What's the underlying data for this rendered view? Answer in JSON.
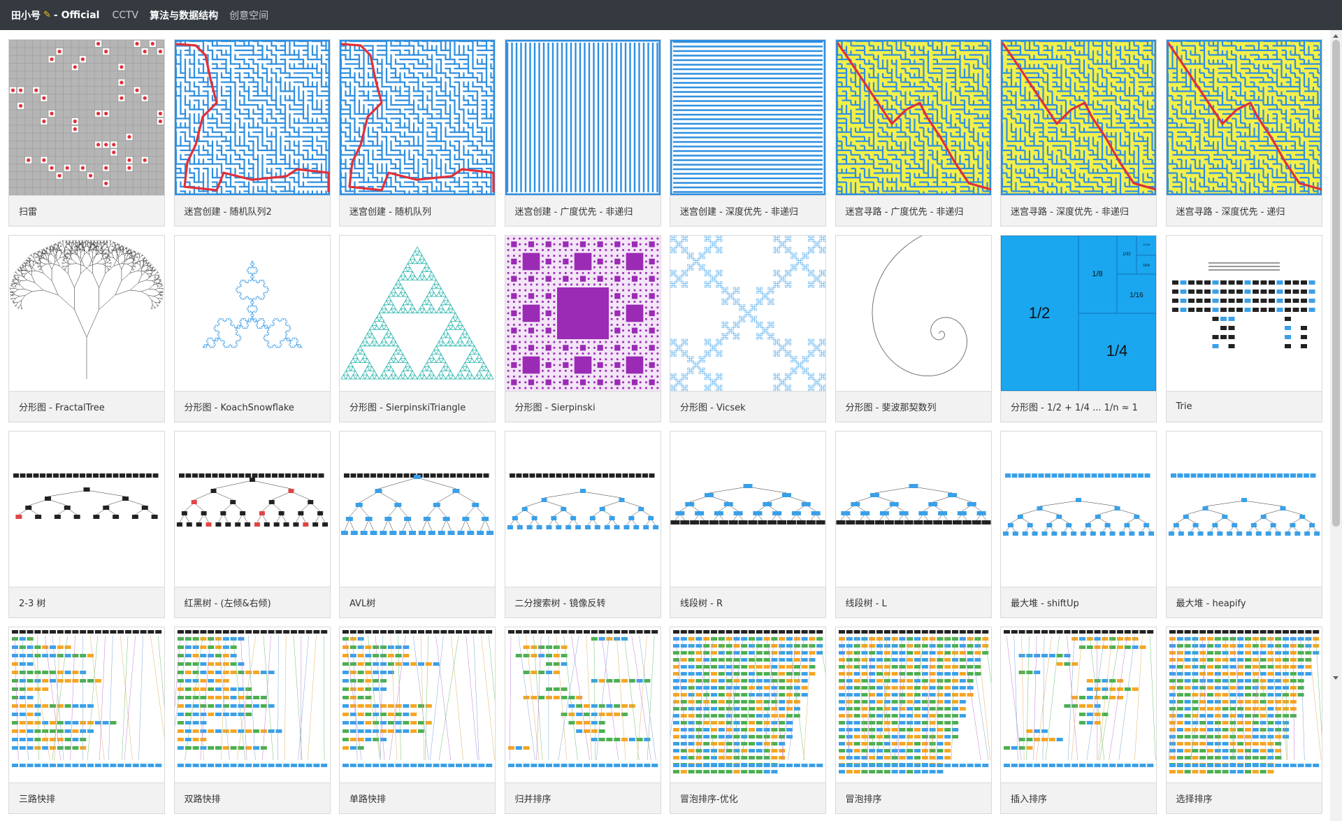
{
  "nav": {
    "brand": "田小号",
    "brand_suffix": "- Official",
    "links": [
      "CCTV",
      "算法与数据结构",
      "创意空间"
    ],
    "active": 1
  },
  "cards": [
    {
      "label": "扫雷",
      "kind": "minesweeper"
    },
    {
      "label": "迷宫创建 - 随机队列2",
      "kind": "maze-path"
    },
    {
      "label": "迷宫创建 - 随机队列",
      "kind": "maze-path"
    },
    {
      "label": "迷宫创建 - 广度优先 - 非递归",
      "kind": "maze-vertical"
    },
    {
      "label": "迷宫创建 - 深度优先 - 非递归",
      "kind": "maze-horizontal"
    },
    {
      "label": "迷宫寻路 - 广度优先 - 非递归",
      "kind": "maze-solve"
    },
    {
      "label": "迷宫寻路 - 深度优先 - 非递归",
      "kind": "maze-solve"
    },
    {
      "label": "迷宫寻路 - 深度优先 - 递归",
      "kind": "maze-solve"
    },
    {
      "label": "分形图 - FractalTree",
      "kind": "fractal-tree"
    },
    {
      "label": "分形图 - KoachSnowflake",
      "kind": "koch"
    },
    {
      "label": "分形图 - SierpinskiTriangle",
      "kind": "sierpinski-triangle"
    },
    {
      "label": "分形图 - Sierpinski",
      "kind": "sierpinski-carpet"
    },
    {
      "label": "分形图 - Vicsek",
      "kind": "vicsek"
    },
    {
      "label": "分形图 - 斐波那契数列",
      "kind": "spiral"
    },
    {
      "label": "分形图 - 1/2 + 1/4 ... 1/n ≈ 1",
      "kind": "halves",
      "fractions": [
        "1/2",
        "1/4",
        "1/8",
        "1/16",
        "1/32",
        "1/64",
        "1/128"
      ]
    },
    {
      "label": "Trie",
      "kind": "trie"
    },
    {
      "label": "2-3 树",
      "kind": "tree-small"
    },
    {
      "label": "红黑树 - (左倾&右倾)",
      "kind": "tree-redblack"
    },
    {
      "label": "AVL树",
      "kind": "tree-avl"
    },
    {
      "label": "二分搜索树 - 镜像反转",
      "kind": "tree-blue"
    },
    {
      "label": "线段树 - R",
      "kind": "tree-segment"
    },
    {
      "label": "线段树 - L",
      "kind": "tree-segment"
    },
    {
      "label": "最大堆 - shiftUp",
      "kind": "tree-heap"
    },
    {
      "label": "最大堆 - heapify",
      "kind": "tree-heap"
    },
    {
      "label": "三路快排",
      "kind": "sort"
    },
    {
      "label": "双路快排",
      "kind": "sort"
    },
    {
      "label": "单路快排",
      "kind": "sort"
    },
    {
      "label": "归并排序",
      "kind": "sort-merge"
    },
    {
      "label": "冒泡排序-优化",
      "kind": "sort-bubble"
    },
    {
      "label": "冒泡排序",
      "kind": "sort-bubble"
    },
    {
      "label": "插入排序",
      "kind": "sort-merge"
    },
    {
      "label": "选择排序",
      "kind": "sort-bubble"
    }
  ],
  "colors": {
    "maze_wall": "#2f8fe0",
    "maze_path": "#e0303a",
    "maze_visited": "#f4f04a",
    "mine_bg": "#b5b5b5",
    "mine_dot": "#e0303a",
    "teal": "#20b2aa",
    "purple": "#9b2bb5",
    "sky": "#1aa7f0",
    "node_blue": "#3aa0e8",
    "node_dark": "#222222",
    "node_red": "#e04444",
    "bar_green": "#4caf50",
    "bar_orange": "#f5a623"
  }
}
